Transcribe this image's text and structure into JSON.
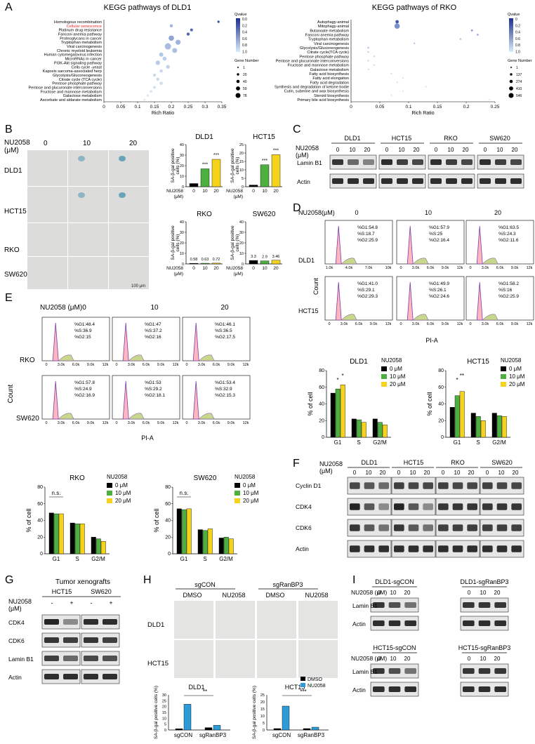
{
  "panel_letters": [
    "A",
    "B",
    "C",
    "D",
    "E",
    "F",
    "G",
    "H",
    "I"
  ],
  "kegg_dld1": {
    "title": "KEGG pathways of DLD1",
    "pathways": [
      "Homologous recombination",
      "Cellular senescence",
      "Platinum drug resistance",
      "Fanconi anemia pathway",
      "Proteoglycans in cancer",
      "Tryptophan metabolism",
      "Viral carcinogenesis",
      "Chronic myeloid leukemia",
      "Human cytomegalovirus infection",
      "MicroRNAs in cancer",
      "PI3K-Akt signaling pathway",
      "Cells cycle -yeast",
      "Kaposis sarcoma-associated herp",
      "Glycolysis/Gluconeogenesis",
      "Citrate cycle (TCA cycle)",
      "Pentose phosphate pathway",
      "Pentose and glucuronate interconversions",
      "Fructose and mannose metabolism",
      "Galactose metabolism",
      "Ascorbate and aldarate metabolism"
    ],
    "highlight_index": 1,
    "highlight_color": "#e8262a",
    "rich_ratio": [
      0.34,
      0.2,
      0.26,
      0.25,
      0.2,
      0.22,
      0.19,
      0.21,
      0.17,
      0.18,
      0.16,
      0.19,
      0.17,
      0.15,
      0.16,
      0.17,
      0.15,
      0.14,
      0.13,
      0.12
    ],
    "xticks": [
      "0",
      "0.05",
      "0.1",
      "0.15",
      "0.2",
      "0.25",
      "0.3",
      "0.35"
    ],
    "xlabel": "Rich Ratio",
    "legend_q_title": "Qvalue",
    "legend_q_ticks": [
      "0.0",
      "0.2",
      "0.4",
      "0.6",
      "0.8",
      "1.0"
    ],
    "legend_g_title": "Gene Number",
    "legend_g_items": [
      "1",
      "20",
      "40",
      "59",
      "78"
    ]
  },
  "kegg_rko": {
    "title": "KEGG pathways of RKO",
    "pathways": [
      "Autophagy-animal",
      "Mitophagy-animal",
      "Butanoate metabolism",
      "Fanconi anemia pathway",
      "Tryptophan metabolism",
      "Viral carcinogenesis",
      "Glycolysis/Gluconeogenesis",
      "Citrate cycle(TCA cycle)",
      "Pentose phosphate pathway",
      "Pentose and glucuronate interconversions",
      "Fructose and mannose metabolism",
      "Galactose metabolism",
      "Fatty acid biosynthesis",
      "Fatty acid elongation",
      "Fatty acid degradation",
      "Synthesis and degradation of ketone bodie",
      "Cutin, suberine and wax biosynthesis",
      "Steroid biosynthesis",
      "Primary bile acid biosynthesis"
    ],
    "rich_ratio": [
      0.08,
      0.08,
      0.21,
      0.22,
      0.19,
      0.11,
      0.03,
      0.03,
      0.04,
      0.03,
      0.04,
      0.03,
      0.07,
      0.09,
      0.08,
      0.13,
      0.09,
      0.07,
      0.24
    ],
    "xticks": [
      "0",
      "0.05",
      "0.1",
      "0.15",
      "0.2",
      "0.25"
    ],
    "xlabel": "Rich Ratio",
    "legend_q_title": "Qvalue",
    "legend_q_ticks": [
      "0",
      "0.2",
      "0.4",
      "0.6",
      "0.8",
      "1.0"
    ],
    "legend_g_title": "Gene Number",
    "legend_g_items": [
      "1",
      "137",
      "274",
      "410",
      "546"
    ]
  },
  "panel_b": {
    "treatment": "NU2058",
    "unit": "(μM)",
    "doses": [
      "0",
      "10",
      "20"
    ],
    "rows": [
      "DLD1",
      "HCT15",
      "RKO",
      "SW620"
    ],
    "scalebar": "100 μm",
    "ylabel": "SA-β-gal positive cells (%)",
    "charts": [
      {
        "title": "DLD1",
        "values": [
          3,
          17,
          26
        ],
        "ymax": 40,
        "yticks": [
          "0",
          "10",
          "20",
          "30",
          "40"
        ],
        "stars": [
          "",
          "***",
          "***"
        ]
      },
      {
        "title": "HCT15",
        "values": [
          1,
          13,
          19
        ],
        "ymax": 25,
        "yticks": [
          "0",
          "5",
          "10",
          "15",
          "20",
          "25"
        ],
        "stars": [
          "",
          "***",
          "***"
        ]
      },
      {
        "title": "RKO",
        "values": [
          0.58,
          0.63,
          0.72
        ],
        "ymax": 40,
        "yticks": [
          "0",
          "10",
          "20",
          "30",
          "40"
        ],
        "labels": [
          "0.58",
          "0.63",
          "0.72"
        ]
      },
      {
        "title": "SW620",
        "values": [
          3.3,
          2.9,
          3.46
        ],
        "ymax": 40,
        "yticks": [
          "0",
          "10",
          "20",
          "30",
          "40"
        ],
        "labels": [
          "3.3",
          "2.9",
          "3.46"
        ]
      }
    ]
  },
  "panel_c": {
    "groups": [
      "DLD1",
      "HCT15",
      "RKO",
      "SW620"
    ],
    "rows": [
      "Lamin B1",
      "Actin"
    ]
  },
  "panel_d": {
    "header": "NU2058(μM)",
    "doses": [
      "0",
      "10",
      "20"
    ],
    "rows": [
      "DLD1",
      "HCT15"
    ],
    "ylabel": "Count",
    "xlabel": "PI-A",
    "stats": [
      [
        "%G1:54.8",
        "%S:18.7",
        "%G2:25.9"
      ],
      [
        "%G1:57.9",
        "%S:25",
        "%G2:16.4"
      ],
      [
        "%G1:63.5",
        "%S:24.3",
        "%G2:11.6"
      ],
      [
        "%G1:41.0",
        "%S:29.1",
        "%G2:29.3"
      ],
      [
        "%G1:49.9",
        "%S:26.1",
        "%G2:24.6"
      ],
      [
        "%G1:58.2",
        "%S:16",
        "%G2:25.9"
      ]
    ]
  },
  "panel_e": {
    "header": "NU2058 (μM)",
    "doses": [
      "0",
      "10",
      "20"
    ],
    "rows": [
      "RKO",
      "SW620"
    ],
    "ylabel": "Count",
    "xlabel": "PI-A",
    "stats": [
      [
        "%G1:48.4",
        "%S:36.9",
        "%G2:15"
      ],
      [
        "%G1:47",
        "%S:37.2",
        "%G2:16"
      ],
      [
        "%G1:46.1",
        "%S:36.5",
        "%G2:17.5"
      ],
      [
        "%G1:57.8",
        "%S:24.9",
        "%G2:16.9"
      ],
      [
        "%G1:53",
        "%S:29.2",
        "%G2:18.1"
      ],
      [
        "%G1:53.4",
        "%S:32.9",
        "%G2:15.3"
      ]
    ]
  },
  "cell_cycle_charts": {
    "legend_title": "NU2058",
    "legend": [
      "0 μM",
      "10 μM",
      "20 μM"
    ],
    "colors": [
      "#000000",
      "#4caf3f",
      "#f5d31c"
    ],
    "categories": [
      "G1",
      "S",
      "G2/M"
    ],
    "ylabel": "% of cell",
    "yticks": [
      "0",
      "20",
      "40",
      "60",
      "80"
    ],
    "charts": [
      {
        "title": "DLD1",
        "values": [
          [
            53,
            58,
            63
          ],
          [
            22,
            21,
            18
          ],
          [
            22,
            18,
            15
          ]
        ],
        "stars": [
          "*",
          "*"
        ]
      },
      {
        "title": "HCT15",
        "values": [
          [
            36,
            50,
            55
          ],
          [
            29,
            25,
            20
          ],
          [
            29,
            26,
            25
          ]
        ],
        "stars": [
          "*",
          "**"
        ]
      },
      {
        "title": "RKO",
        "values": [
          [
            49,
            48,
            48
          ],
          [
            37,
            36,
            36
          ],
          [
            20,
            18,
            15
          ]
        ],
        "ns": "n.s."
      },
      {
        "title": "SW620",
        "values": [
          [
            54,
            53,
            54
          ],
          [
            29,
            28,
            30
          ],
          [
            19,
            20,
            18
          ]
        ],
        "ns": "n.s."
      }
    ]
  },
  "panel_f": {
    "treatment": "NU2058",
    "unit": "(μM)",
    "groups": [
      "DLD1",
      "HCT15",
      "RKO",
      "SW620"
    ],
    "rows": [
      "Cyclin D1",
      "CDK4",
      "CDK6",
      "Actin"
    ]
  },
  "panel_g": {
    "title": "Tumor xenografts",
    "treatment": "NU2058",
    "unit": "(μM)",
    "groups": [
      "HCT15",
      "SW620"
    ],
    "signs": [
      "-",
      "+",
      "-",
      "+"
    ],
    "rows": [
      "CDK4",
      "CDK6",
      "Lamin B1",
      "Actin"
    ]
  },
  "panel_h": {
    "groups": [
      "sgCON",
      "sgRanBP3"
    ],
    "conditions": [
      "DMSO",
      "NU2058",
      "DMSO",
      "NU2058"
    ],
    "rows": [
      "DLD1",
      "HCT15"
    ],
    "ylabel": "SA-β-gal positive cells (%)",
    "legend": [
      "DMSO",
      "NU2058"
    ],
    "colors": [
      "#000000",
      "#2e9bd6"
    ],
    "charts": [
      {
        "title": "DLD1",
        "values": [
          [
            1,
            22
          ],
          [
            2,
            4
          ]
        ],
        "ymax": 30,
        "yticks": [
          "0",
          "5",
          "10",
          "15",
          "20",
          "25",
          "30"
        ],
        "stars": "**"
      },
      {
        "title": "HCT15",
        "values": [
          [
            1,
            17
          ],
          [
            1,
            2
          ]
        ],
        "ymax": 25,
        "yticks": [
          "0",
          "5",
          "10",
          "15",
          "20",
          "25"
        ],
        "stars": "***"
      }
    ]
  },
  "panel_i": {
    "treatment": "NU2058 (μM)",
    "top_groups": [
      "DLD1-sgCON",
      "DLD1-sgRanBP3"
    ],
    "bottom_groups": [
      "HCT15-sgCON",
      "HCT15-sgRanBP3"
    ],
    "rows": [
      "Lamin B1",
      "Actin"
    ]
  }
}
